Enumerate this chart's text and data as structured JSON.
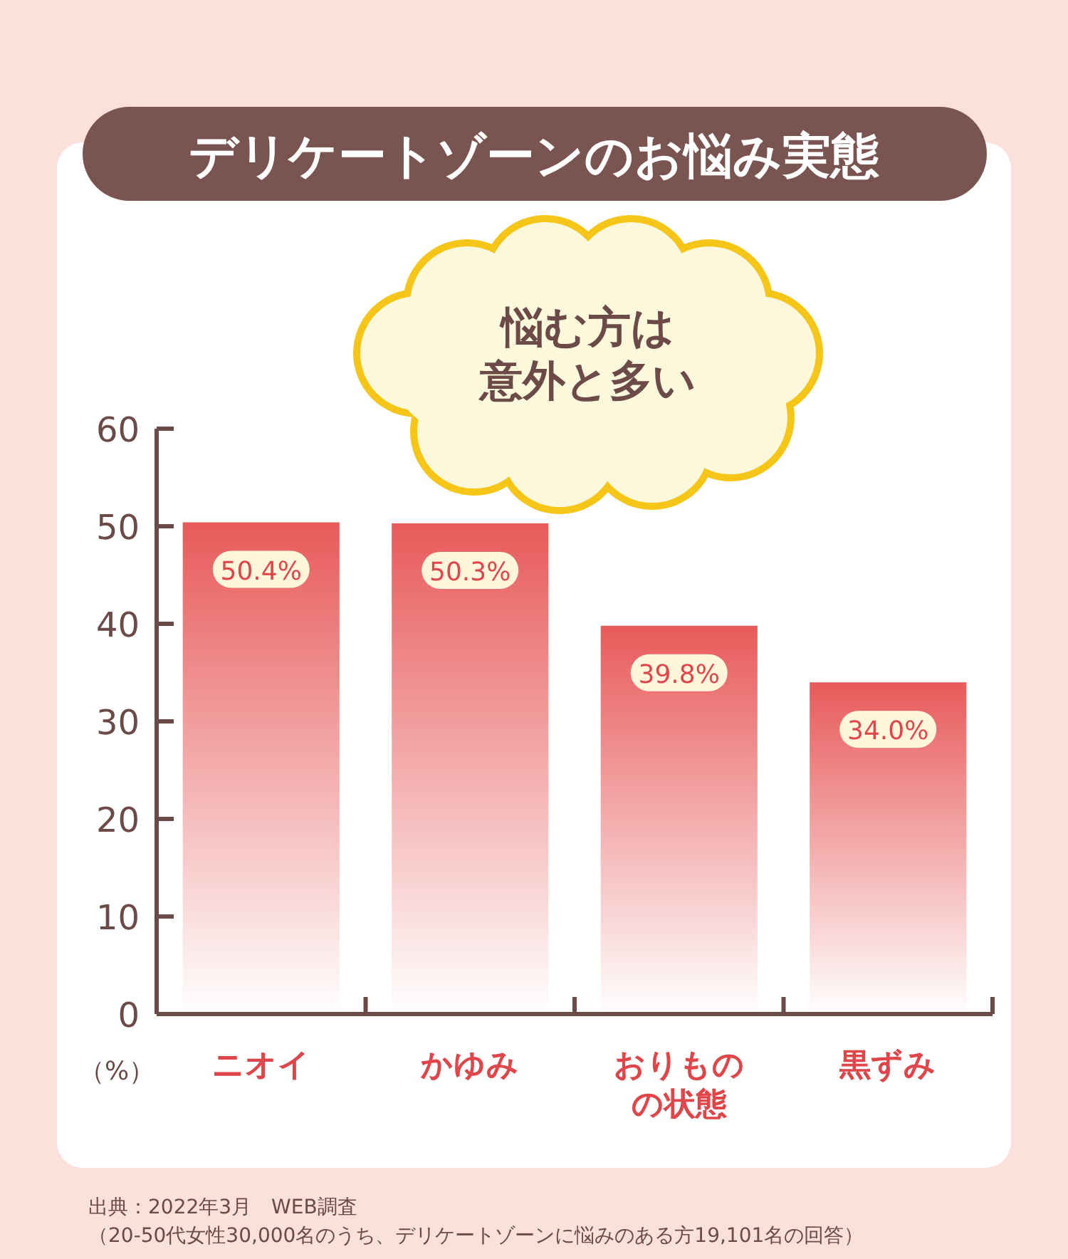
{
  "chart_data": {
    "type": "bar",
    "title": "デリケートゾーンのお悩み実態",
    "categories": [
      "ニオイ",
      "かゆみ",
      "おりものの状態",
      "黒ずみ"
    ],
    "values": [
      50.4,
      50.3,
      39.8,
      34.0
    ],
    "value_labels": [
      "50.4%",
      "50.3%",
      "39.8%",
      "34.0%"
    ],
    "color": "#e85a5a",
    "ylim": [
      0,
      60
    ],
    "yticks": [
      0,
      10,
      20,
      30,
      40,
      50,
      60
    ],
    "ylabel": "（%）",
    "annotations": [
      "悩む方は意外と多い",
      "出典：2022年3月　WEB調査",
      "（20-50代女性30,000名のうち、デリケートゾーンに悩みのある方19,101名の回答）"
    ]
  }
}
